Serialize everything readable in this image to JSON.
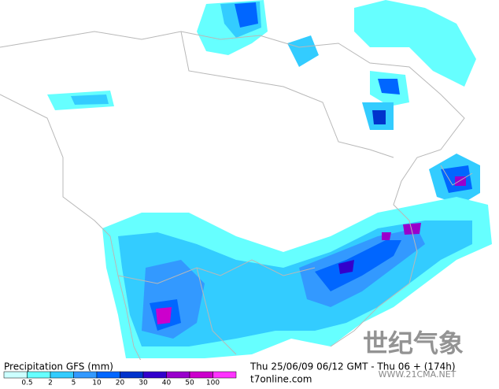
{
  "map": {
    "title": "Precipitation GFS (mm)",
    "time_label": "Thu 25/06/09 06/12 GMT - Thu 06 + (174h)",
    "source": "t7online.com",
    "watermark": "世纪气象",
    "watermark_url": "WWW.21CMA.NET"
  },
  "legend": {
    "labels": [
      "0.5",
      "2",
      "5",
      "10",
      "20",
      "30",
      "40",
      "50",
      "100"
    ],
    "colors": [
      "#ccffff",
      "#66ffff",
      "#33ccff",
      "#3399ff",
      "#0066ff",
      "#0033cc",
      "#3300cc",
      "#9900cc",
      "#cc00cc",
      "#ff33ff"
    ]
  }
}
